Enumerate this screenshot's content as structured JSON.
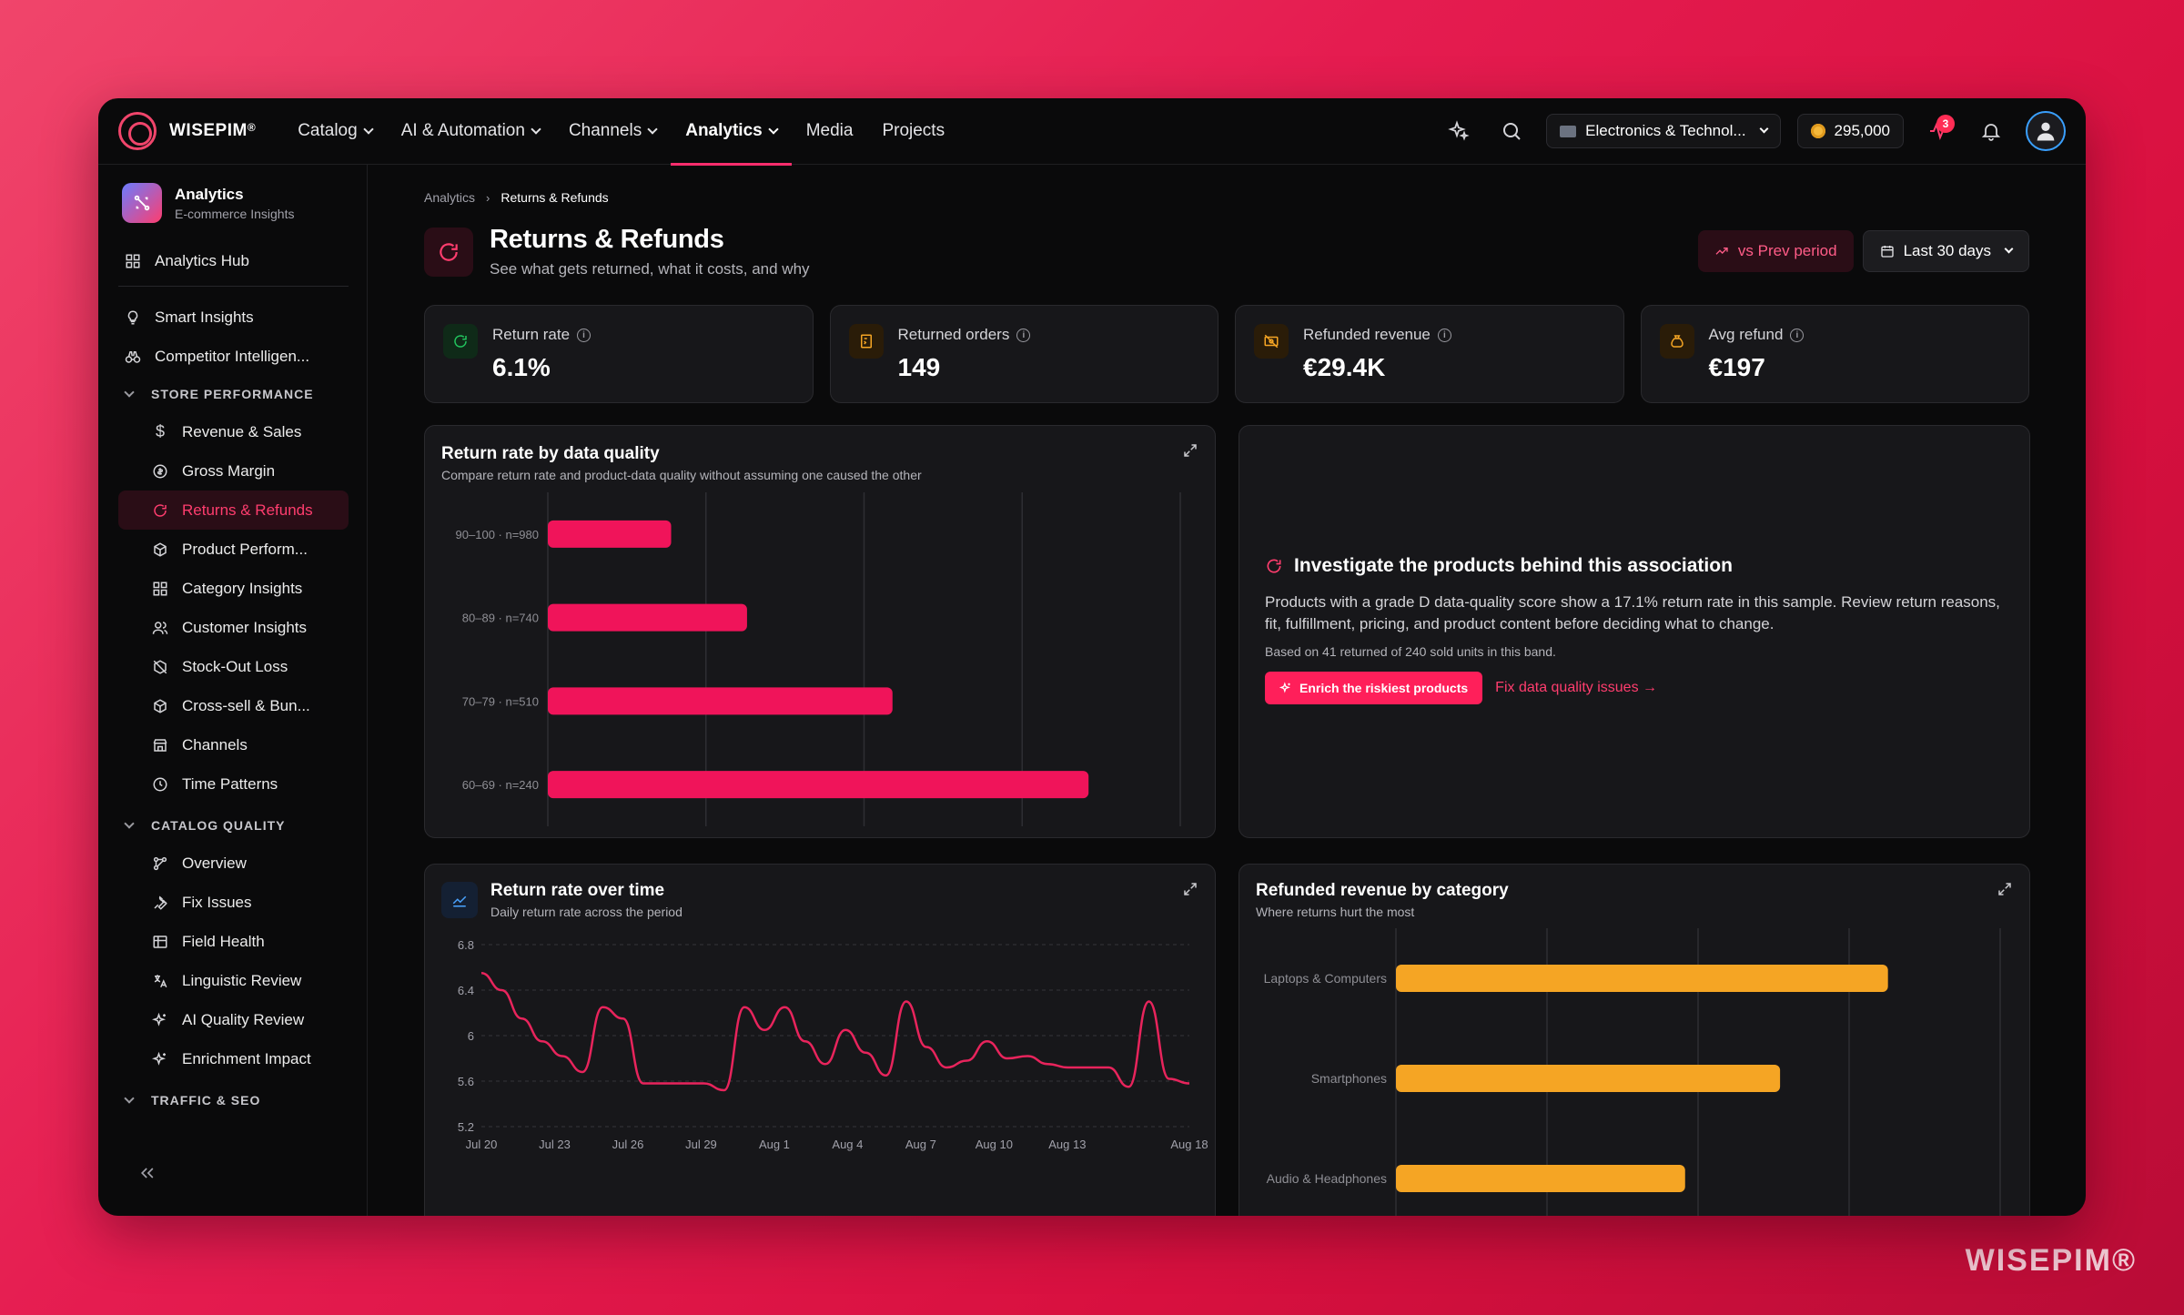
{
  "brand": {
    "name": "WISEPIM",
    "mark": "®",
    "watermark": "WISEPIM®"
  },
  "nav": {
    "items": [
      {
        "label": "Catalog",
        "dropdown": true
      },
      {
        "label": "AI & Automation",
        "dropdown": true
      },
      {
        "label": "Channels",
        "dropdown": true
      },
      {
        "label": "Analytics",
        "dropdown": true,
        "active": true
      },
      {
        "label": "Media",
        "dropdown": false
      },
      {
        "label": "Projects",
        "dropdown": false
      }
    ],
    "store_selector": "Electronics & Technol...",
    "coins": "295,000",
    "notifications_badge": "3"
  },
  "sidebar": {
    "header_title": "Analytics",
    "header_subtitle": "E-commerce Insights",
    "hub": "Analytics Hub",
    "top_items": [
      "Smart Insights",
      "Competitor Intelligen..."
    ],
    "sections": [
      {
        "title": "STORE PERFORMANCE",
        "items": [
          {
            "label": "Revenue & Sales",
            "icon": "dollar-icon"
          },
          {
            "label": "Gross Margin",
            "icon": "coin-icon"
          },
          {
            "label": "Returns & Refunds",
            "icon": "refresh-icon",
            "active": true
          },
          {
            "label": "Product Perform...",
            "icon": "box-icon"
          },
          {
            "label": "Category Insights",
            "icon": "grid-icon"
          },
          {
            "label": "Customer Insights",
            "icon": "users-icon"
          },
          {
            "label": "Stock-Out Loss",
            "icon": "package-off-icon"
          },
          {
            "label": "Cross-sell & Bun...",
            "icon": "box-icon"
          },
          {
            "label": "Channels",
            "icon": "store-icon"
          },
          {
            "label": "Time Patterns",
            "icon": "clock-icon"
          }
        ]
      },
      {
        "title": "CATALOG QUALITY",
        "items": [
          {
            "label": "Overview",
            "icon": "flow-icon"
          },
          {
            "label": "Fix Issues",
            "icon": "wrench-icon"
          },
          {
            "label": "Field Health",
            "icon": "table-icon"
          },
          {
            "label": "Linguistic Review",
            "icon": "translate-icon"
          },
          {
            "label": "AI Quality Review",
            "icon": "sparkle-icon"
          },
          {
            "label": "Enrichment Impact",
            "icon": "sparkle-icon"
          }
        ]
      },
      {
        "title": "TRAFFIC & SEO",
        "items": []
      }
    ]
  },
  "breadcrumb": [
    "Analytics",
    "Returns & Refunds"
  ],
  "page": {
    "title": "Returns & Refunds",
    "subtitle": "See what gets returned, what it costs, and why",
    "compare_button": "vs Prev period",
    "date_range": "Last 30 days"
  },
  "kpis": [
    {
      "label": "Return rate",
      "value": "6.1%",
      "color": "#22c55e"
    },
    {
      "label": "Returned orders",
      "value": "149",
      "color": "#f5a524"
    },
    {
      "label": "Refunded revenue",
      "value": "€29.4K",
      "color": "#f5a524"
    },
    {
      "label": "Avg refund",
      "value": "€197",
      "color": "#f5a524"
    }
  ],
  "quality_chart": {
    "title": "Return rate by data quality",
    "subtitle": "Compare return rate and product-data quality without assuming one caused the other"
  },
  "insight": {
    "title": "Investigate the products behind this association",
    "body": "Products with a grade D data-quality score show a 17.1% return rate in this sample. Review return reasons, fit, fulfillment, pricing, and product content before deciding what to change.",
    "note": "Based on 41 returned of 240 sold units in this band.",
    "primary_action": "Enrich the riskiest products",
    "secondary_action": "Fix data quality issues →"
  },
  "time_chart": {
    "title": "Return rate over time",
    "subtitle": "Daily return rate across the period"
  },
  "category_chart": {
    "title": "Refunded revenue by category",
    "subtitle": "Where returns hurt the most"
  },
  "colors": {
    "accent": "#ff1f5a",
    "bar_pink": "#f0145a",
    "bar_orange": "#f5a524",
    "line": "#e8245c"
  },
  "chart_data": [
    {
      "type": "bar",
      "orientation": "horizontal",
      "categories": [
        "90–100 · n=980",
        "80–89 · n=740",
        "70–79 · n=510",
        "60–69 · n=240"
      ],
      "values": [
        3.9,
        6.3,
        10.9,
        17.1
      ],
      "xlim": [
        0,
        20
      ],
      "grid": true,
      "color": "#f0145a"
    },
    {
      "type": "line",
      "x_ticks": [
        "Jul 20",
        "Jul 23",
        "Jul 26",
        "Jul 29",
        "Aug 1",
        "Aug 4",
        "Aug 7",
        "Aug 10",
        "Aug 13",
        "Aug 18"
      ],
      "y_ticks": [
        "6.8",
        "6.4",
        "6",
        "5.6",
        "5.2"
      ],
      "ylim": [
        5.2,
        6.8
      ],
      "values": [
        6.55,
        6.4,
        6.15,
        5.95,
        5.82,
        5.68,
        6.25,
        6.15,
        5.58,
        5.58,
        5.58,
        5.58,
        5.52,
        6.25,
        6.05,
        6.25,
        5.95,
        5.75,
        6.05,
        5.85,
        5.65,
        6.3,
        5.9,
        5.72,
        5.78,
        5.95,
        5.8,
        5.82,
        5.75,
        5.72,
        5.72,
        5.72,
        5.55,
        6.3,
        5.62,
        5.58
      ],
      "grid": true,
      "color": "#e8245c"
    },
    {
      "type": "bar",
      "orientation": "horizontal",
      "categories": [
        "Laptops & Computers",
        "Smartphones",
        "Audio & Headphones"
      ],
      "values": [
        11400,
        8900,
        6700
      ],
      "xlim": [
        0,
        14000
      ],
      "grid": true,
      "color": "#f5a524"
    }
  ]
}
